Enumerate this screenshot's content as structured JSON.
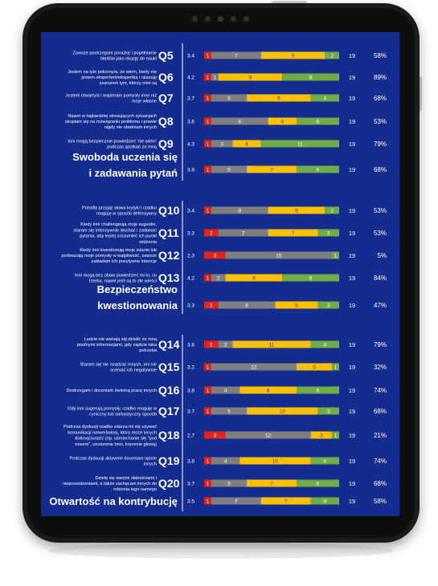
{
  "colors": {
    "background": "#152c8f",
    "red": "#e2231a",
    "gray": "#7f7f7f",
    "yellow": "#ffc000",
    "green": "#70ad47",
    "divider": "#ffffff"
  },
  "chart_data": {
    "type": "bar",
    "orientation": "horizontal",
    "stacked": true,
    "title": "",
    "xlabel": "",
    "ylabel": "",
    "series": [
      "red",
      "gray",
      "yellow",
      "green"
    ],
    "groups": [
      {
        "title": "Swoboda uczenia się i zadawania pytań",
        "items": [
          {
            "code": "Q5",
            "text": "Zawsze postrzegam porażkę i popełnianie błędów jako okazję do nauki",
            "score": "3.4",
            "values": [
              1,
              7,
              9,
              2
            ],
            "n": "19",
            "pct": "58%"
          },
          {
            "code": "Q6",
            "text": "Jestem na tyle pokorny/a, że wiem, kiedy nie jestem ekspertem/ekspertką i okazuję szacunek tym, którzy nimi są",
            "score": "4.2",
            "values": [
              1,
              1,
              9,
              8
            ],
            "n": "19",
            "pct": "89%"
          },
          {
            "code": "Q7",
            "text": "Jestem otwarty/a i wspieram pomysły inne niż moje własne",
            "score": "3.7",
            "values": [
              1,
              5,
              9,
              4
            ],
            "n": "19",
            "pct": "68%"
          },
          {
            "code": "Q8",
            "text": "Nawet w najbardziej stresujących sytuacjach skupiam się na rozwiązaniu problemu i prawie nigdy nie obwiniam innych",
            "score": "3.6",
            "values": [
              1,
              8,
              4,
              6
            ],
            "n": "19",
            "pct": "53%"
          },
          {
            "code": "Q9",
            "text": "Inni mogą bezpiecznie powiedzieć 'nie wiem' podczas spotkań ze mną",
            "score": "4.3",
            "values": [
              1,
              3,
              4,
              11
            ],
            "n": "19",
            "pct": "79%"
          }
        ],
        "summary": {
          "score": "3.9",
          "values": [
            1,
            5,
            7,
            6
          ],
          "n": "19",
          "pct": "68%"
        }
      },
      {
        "title": "Bezpieczeństwo kwestionowania",
        "items": [
          {
            "code": "Q10",
            "text": "Potrafię przyjąć słowa krytyki i rzadko reaguję w sposób defensywny",
            "score": "3.4",
            "values": [
              1,
              8,
              8,
              2
            ],
            "n": "19",
            "pct": "53%"
          },
          {
            "code": "Q11",
            "text": "Kiedy inni challengeują moje sugestie, staram się intensywnie słuchać i zadawać pytania, aby lepiej zrozumieć ich punkt widzenia",
            "score": "3.3",
            "values": [
              2,
              7,
              7,
              3
            ],
            "n": "19",
            "pct": "53%"
          },
          {
            "code": "Q12",
            "text": "Kiedy inni kwestionują moje zdanie lub podważają moje pomysły w wątpliwość, zawsze zakładam ich pozytywne intencje",
            "score": "2.3",
            "values": [
              3,
              15,
              0,
              1
            ],
            "n": "19",
            "pct": "5%"
          },
          {
            "code": "Q13",
            "text": "Inni mogą bez obaw powiedzieć mi to, co trzeba, nawet jeśli są to złe wieści",
            "score": "4.2",
            "values": [
              1,
              2,
              8,
              8
            ],
            "n": "19",
            "pct": "84%"
          }
        ],
        "summary": {
          "score": "3.3",
          "values": [
            2,
            8,
            6,
            3
          ],
          "n": "19",
          "pct": "47%"
        }
      },
      {
        "title": "Otwartość na kontrybucję",
        "items": [
          {
            "code": "Q14",
            "text": "Ludzie nie wahają się dzielić ze mną poufnymi informacjami, gdy zajdzie taka potrzeba",
            "score": "3.8",
            "values": [
              2,
              2,
              11,
              4
            ],
            "n": "19",
            "pct": "79%"
          },
          {
            "code": "Q15",
            "text": "Staram się nie osądzać innych, ani nie oceniać ich negatywnie",
            "score": "3.2",
            "values": [
              1,
              12,
              5,
              1
            ],
            "n": "19",
            "pct": "32%"
          },
          {
            "code": "Q16",
            "text": "Dostrzegam i doceniam świetną pracę innych",
            "score": "3.8",
            "values": [
              1,
              4,
              8,
              6
            ],
            "n": "19",
            "pct": "74%"
          },
          {
            "code": "Q17",
            "text": "Gdy inni sugerują pomysły, rzadko reaguję w cyniczny lub sarkastyczny sposób",
            "score": "3.7",
            "values": [
              1,
              5,
              10,
              3
            ],
            "n": "19",
            "pct": "68%"
          },
          {
            "code": "Q18",
            "text": "Podczas dyskusji rzadko zdarza mi się używać komunikacji niewerbalnej, która może innych dotknąć/urazić (np. uśmiechanie się \"pod nosem\", unoszenie brwi, kręcenie głową)",
            "score": "2.7",
            "values": [
              3,
              12,
              3,
              1
            ],
            "n": "19",
            "pct": "21%"
          },
          {
            "code": "Q19",
            "text": "Podczas dyskusji aktywnie doceniam opinie innych",
            "score": "3.8",
            "values": [
              1,
              4,
              10,
              4
            ],
            "n": "19",
            "pct": "74%"
          },
          {
            "code": "Q20",
            "text": "Dzielę się swoimi słabościami i niepowodzeniami, a także zachęcam innych do robienia tego samego",
            "score": "3.7",
            "values": [
              1,
              5,
              7,
              6
            ],
            "n": "19",
            "pct": "68%"
          }
        ],
        "summary": {
          "score": "3.5",
          "values": [
            1,
            7,
            7,
            4
          ],
          "n": "19",
          "pct": "58%"
        }
      }
    ]
  }
}
